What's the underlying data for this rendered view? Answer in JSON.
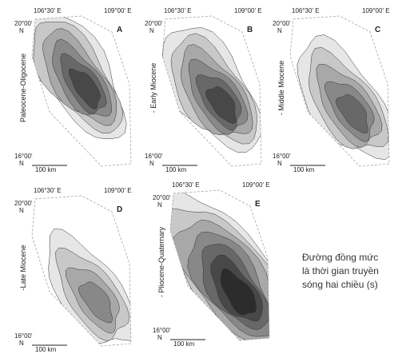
{
  "panels": [
    {
      "letter": "A",
      "period": "Paleocene-Oligocene",
      "lon_west": "106°30' E",
      "lon_east": "109°00' E",
      "lat_north": "20°00'",
      "lat_north_hemi": "N",
      "lat_south": "16°00'",
      "lat_south_hemi": "N",
      "scale": "100 km"
    },
    {
      "letter": "B",
      "period": "- Early Miocene",
      "lon_west": "106°30' E",
      "lon_east": "109°00' E",
      "lat_north": "20°00'",
      "lat_north_hemi": "N",
      "lat_south": "16°00'",
      "lat_south_hemi": "N",
      "scale": "100 km"
    },
    {
      "letter": "C",
      "period": "- Middle Miocene",
      "lon_west": "106°30' E",
      "lon_east": "109°00' E",
      "lat_north": "20°00'",
      "lat_north_hemi": "N",
      "lat_south": "16°00'",
      "lat_south_hemi": "N",
      "scale": "100 km"
    },
    {
      "letter": "D",
      "period": "-Late Miocene",
      "lon_west": "106°30' E",
      "lon_east": "109°00' E",
      "lat_north": "20°00'",
      "lat_north_hemi": "N",
      "lat_south": "16°00'",
      "lat_south_hemi": "N",
      "scale": "100 km"
    },
    {
      "letter": "E",
      "period": "- Pliocene-Quaternary",
      "lon_west": "106°30' E",
      "lon_east": "109°00' E",
      "lat_north": "20°00'",
      "lat_north_hemi": "N",
      "lat_south": "16°00'",
      "lat_south_hemi": "N",
      "scale": "100 km"
    }
  ],
  "legend": {
    "lines": [
      "Đường đồng mức",
      "là thời gian truyền",
      "sóng hai chiều (s)"
    ]
  }
}
